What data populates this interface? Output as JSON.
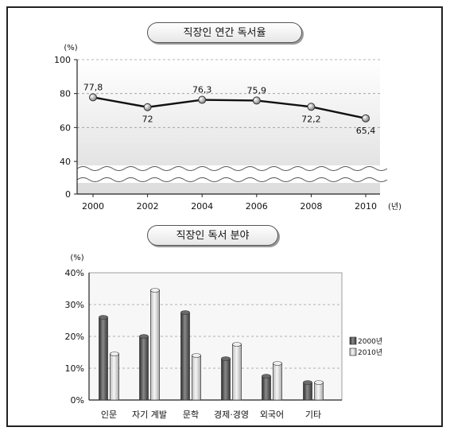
{
  "chart_data": [
    {
      "type": "line",
      "title": "직장인 연간 독서율",
      "ylabel": "(%)",
      "xlabel": "(년)",
      "x": [
        "2000",
        "2002",
        "2004",
        "2006",
        "2008",
        "2010"
      ],
      "series": [
        {
          "values": [
            77.8,
            72,
            76.3,
            75.9,
            72.2,
            65.4
          ]
        }
      ],
      "data_labels": [
        "77,8",
        "72",
        "76,3",
        "75,9",
        "72,2",
        "65,4"
      ],
      "yticks": [
        "0",
        "40",
        "60",
        "80",
        "100"
      ],
      "ylim": [
        0,
        100
      ],
      "axis_break": true,
      "grid": true
    },
    {
      "type": "bar",
      "title": "직장인 독서 분야",
      "ylabel": "(%)",
      "categories": [
        "인문",
        "자기 계발",
        "문학",
        "경제·경영",
        "외국어",
        "기타"
      ],
      "series": [
        {
          "name": "2000년",
          "values": [
            26,
            20,
            27.5,
            13,
            7.5,
            5.5
          ],
          "color": "#4a4a4a"
        },
        {
          "name": "2010년",
          "values": [
            14.5,
            34.5,
            14,
            17.5,
            11.5,
            5.5
          ],
          "color": "#d6d6d6"
        }
      ],
      "yticks": [
        "0%",
        "10%",
        "20%",
        "30%",
        "40%"
      ],
      "ylim": [
        0,
        40
      ],
      "legend": "right",
      "grid": true
    }
  ]
}
